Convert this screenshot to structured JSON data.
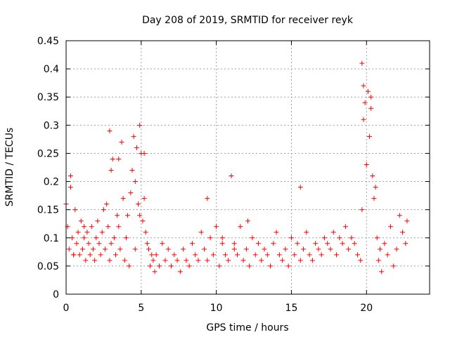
{
  "chart_data": {
    "type": "scatter",
    "title": "Day 208 of 2019, SRMTID for receiver reyk",
    "xlabel": "GPS time / hours",
    "ylabel": "SRMTID / TECUs",
    "xlim": [
      0,
      24.2
    ],
    "ylim": [
      0,
      0.45
    ],
    "x_ticks": [
      0,
      5,
      10,
      15,
      20
    ],
    "y_ticks": [
      0,
      0.05,
      0.1,
      0.15,
      0.2,
      0.25,
      0.3,
      0.35,
      0.4,
      0.45
    ],
    "x_tick_labels": [
      "0",
      "5",
      "10",
      "15",
      "20"
    ],
    "y_tick_labels": [
      "0",
      "0.05",
      "0.1",
      "0.15",
      "0.2",
      "0.25",
      "0.3",
      "0.35",
      "0.4",
      "0.45"
    ],
    "grid": true,
    "marker": "+",
    "color": "#ff0000",
    "series": [
      {
        "name": "SRMTID",
        "x": [
          0.0,
          0.1,
          0.2,
          0.3,
          0.4,
          0.5,
          0.6,
          0.7,
          0.8,
          0.9,
          1.0,
          1.1,
          1.2,
          1.3,
          1.4,
          1.5,
          1.6,
          1.7,
          1.8,
          1.9,
          2.0,
          2.1,
          2.2,
          2.3,
          2.4,
          2.5,
          2.6,
          2.7,
          2.8,
          2.9,
          3.0,
          3.1,
          3.2,
          3.3,
          3.4,
          3.5,
          3.6,
          3.7,
          3.8,
          3.9,
          4.0,
          4.1,
          4.2,
          4.3,
          4.4,
          4.5,
          4.6,
          4.7,
          4.8,
          4.9,
          5.0,
          5.1,
          5.2,
          5.3,
          5.4,
          5.5,
          5.6,
          5.7,
          5.8,
          5.9,
          6.0,
          6.2,
          6.4,
          6.6,
          6.8,
          7.0,
          7.2,
          7.4,
          7.6,
          7.8,
          8.0,
          8.2,
          8.4,
          8.6,
          8.8,
          9.0,
          9.2,
          9.4,
          9.6,
          9.8,
          10.0,
          10.2,
          10.4,
          10.6,
          10.8,
          11.0,
          11.2,
          11.4,
          11.6,
          11.8,
          12.0,
          12.2,
          12.4,
          12.6,
          12.8,
          13.0,
          13.2,
          13.4,
          13.6,
          13.8,
          14.0,
          14.2,
          14.4,
          14.6,
          14.8,
          15.0,
          15.2,
          15.4,
          15.6,
          15.8,
          16.0,
          16.2,
          16.4,
          16.6,
          16.8,
          17.0,
          17.2,
          17.4,
          17.6,
          17.8,
          18.0,
          18.2,
          18.4,
          18.6,
          18.8,
          19.0,
          19.2,
          19.4,
          19.6,
          19.7,
          19.8,
          19.9,
          20.0,
          20.1,
          20.2,
          20.3,
          20.4,
          20.5,
          20.6,
          20.7,
          20.8,
          20.9,
          21.0,
          21.2,
          21.4,
          21.6,
          21.8,
          22.0,
          22.2,
          22.4,
          22.6,
          22.7,
          0.3,
          0.5,
          1.2,
          2.9,
          3.0,
          3.5,
          4.6,
          4.9,
          5.2,
          9.4,
          10.4,
          11.2,
          12.1,
          15.6,
          19.7,
          19.8,
          20.3
        ],
        "y": [
          0.16,
          0.12,
          0.08,
          0.21,
          0.1,
          0.07,
          0.15,
          0.09,
          0.11,
          0.07,
          0.13,
          0.08,
          0.1,
          0.06,
          0.11,
          0.09,
          0.07,
          0.12,
          0.08,
          0.06,
          0.1,
          0.13,
          0.09,
          0.07,
          0.11,
          0.15,
          0.08,
          0.16,
          0.12,
          0.29,
          0.22,
          0.24,
          0.1,
          0.07,
          0.14,
          0.12,
          0.08,
          0.27,
          0.17,
          0.06,
          0.1,
          0.14,
          0.05,
          0.18,
          0.22,
          0.28,
          0.2,
          0.26,
          0.16,
          0.3,
          0.25,
          0.13,
          0.17,
          0.11,
          0.09,
          0.08,
          0.05,
          0.07,
          0.06,
          0.04,
          0.07,
          0.05,
          0.09,
          0.06,
          0.08,
          0.05,
          0.07,
          0.06,
          0.04,
          0.08,
          0.06,
          0.05,
          0.09,
          0.07,
          0.06,
          0.11,
          0.08,
          0.06,
          0.1,
          0.07,
          0.12,
          0.05,
          0.09,
          0.07,
          0.06,
          0.21,
          0.09,
          0.07,
          0.12,
          0.06,
          0.08,
          0.05,
          0.1,
          0.07,
          0.09,
          0.06,
          0.08,
          0.07,
          0.05,
          0.09,
          0.11,
          0.07,
          0.06,
          0.08,
          0.05,
          0.1,
          0.07,
          0.09,
          0.06,
          0.08,
          0.11,
          0.07,
          0.06,
          0.09,
          0.08,
          0.07,
          0.1,
          0.09,
          0.08,
          0.11,
          0.07,
          0.1,
          0.09,
          0.12,
          0.08,
          0.1,
          0.09,
          0.07,
          0.06,
          0.15,
          0.31,
          0.34,
          0.23,
          0.36,
          0.28,
          0.35,
          0.21,
          0.17,
          0.19,
          0.1,
          0.06,
          0.08,
          0.04,
          0.09,
          0.07,
          0.12,
          0.05,
          0.08,
          0.14,
          0.11,
          0.09,
          0.13,
          0.19,
          0.07,
          0.12,
          0.06,
          0.09,
          0.24,
          0.08,
          0.14,
          0.25,
          0.17,
          0.1,
          0.08,
          0.13,
          0.19,
          0.41,
          0.37,
          0.33
        ]
      }
    ]
  }
}
